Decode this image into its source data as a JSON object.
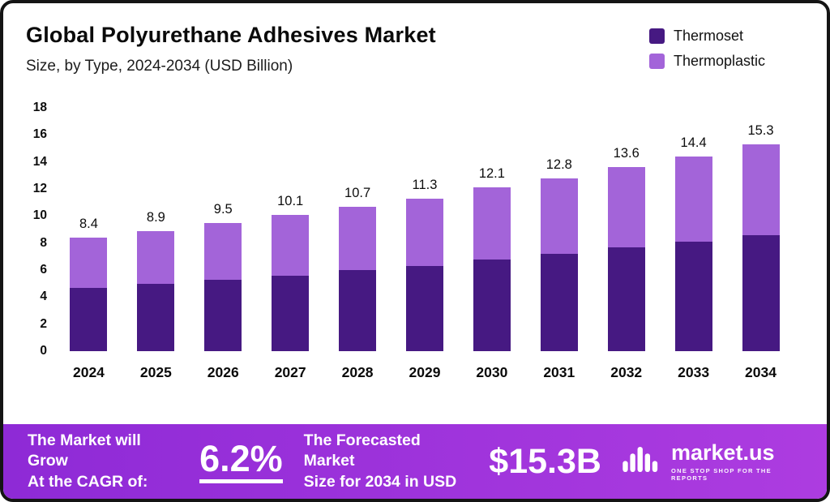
{
  "header": {
    "title": "Global Polyurethane Adhesives Market",
    "subtitle": "Size, by Type, 2024-2034 (USD Billion)"
  },
  "legend": [
    {
      "label": "Thermoset",
      "color": "#461982"
    },
    {
      "label": "Thermoplastic",
      "color": "#a364d9"
    }
  ],
  "chart_data": {
    "type": "bar",
    "stacked": true,
    "title": "Global Polyurethane Adhesives Market Size, by Type, 2024-2034 (USD Billion)",
    "categories": [
      "2024",
      "2025",
      "2026",
      "2027",
      "2028",
      "2029",
      "2030",
      "2031",
      "2032",
      "2033",
      "2034"
    ],
    "series": [
      {
        "name": "Thermoset",
        "color": "#461982",
        "values": [
          4.7,
          5.0,
          5.3,
          5.6,
          6.0,
          6.3,
          6.8,
          7.2,
          7.7,
          8.1,
          8.6
        ]
      },
      {
        "name": "Thermoplastic",
        "color": "#a364d9",
        "values": [
          3.7,
          3.9,
          4.2,
          4.5,
          4.7,
          5.0,
          5.3,
          5.6,
          5.9,
          6.3,
          6.7
        ]
      }
    ],
    "totals": [
      8.4,
      8.9,
      9.5,
      10.1,
      10.7,
      11.3,
      12.1,
      12.8,
      13.6,
      14.4,
      15.3
    ],
    "xlabel": "",
    "ylabel": "",
    "ylim": [
      0,
      18
    ],
    "yticks": [
      0,
      2,
      4,
      6,
      8,
      10,
      12,
      14,
      16,
      18
    ],
    "grid": false,
    "legend_position": "top-right"
  },
  "banner": {
    "left_line1": "The Market will Grow",
    "left_line2": "At the CAGR of:",
    "cagr": "6.2%",
    "mid_line1": "The Forecasted Market",
    "mid_line2": "Size for 2034 in USD",
    "amount": "$15.3B",
    "brand": "market.us",
    "tagline": "ONE STOP SHOP FOR THE REPORTS"
  },
  "colors": {
    "banner_start": "#8e2ad6",
    "banner_end": "#ad3ce0",
    "frame_border": "#141414"
  }
}
